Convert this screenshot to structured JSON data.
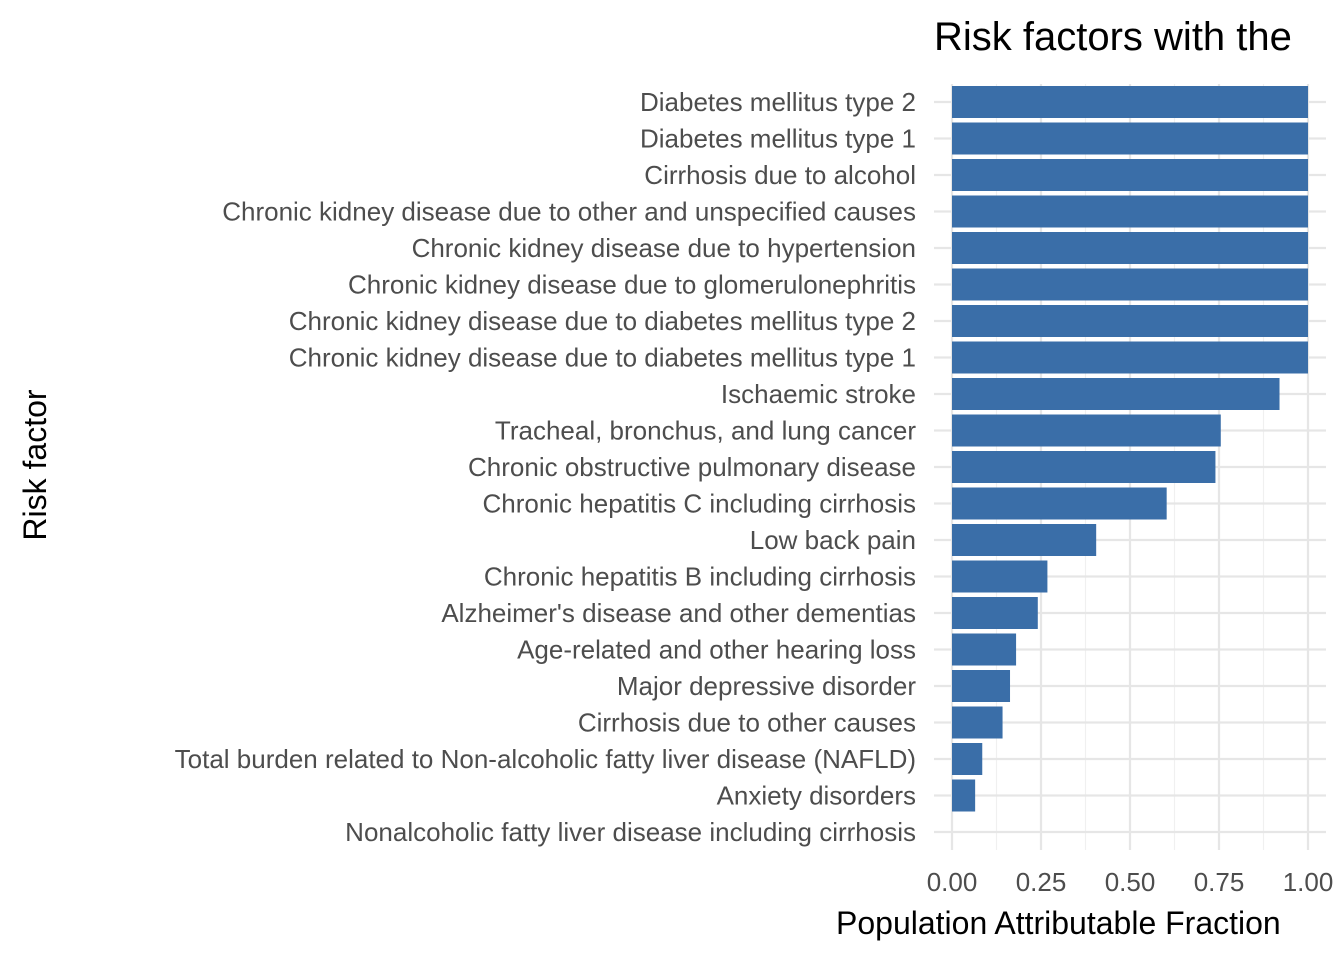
{
  "chart_data": {
    "type": "bar",
    "orientation": "horizontal",
    "title": "Risk factors with the",
    "xlabel": "Population Attributable Fraction",
    "ylabel": "Risk factor",
    "xlim": [
      0,
      1.0
    ],
    "x_ticks": [
      0.0,
      0.25,
      0.5,
      0.75,
      1.0
    ],
    "x_tick_labels": [
      "0.00",
      "0.25",
      "0.50",
      "0.75",
      "1.00"
    ],
    "grid": true,
    "bar_color": "#3a6ea8",
    "categories": [
      "Diabetes mellitus type 2",
      "Diabetes mellitus type 1",
      "Cirrhosis due to alcohol",
      "Chronic kidney disease due to other and unspecified causes",
      "Chronic kidney disease due to hypertension",
      "Chronic kidney disease due to glomerulonephritis",
      "Chronic kidney disease due to diabetes mellitus type 2",
      "Chronic kidney disease due to diabetes mellitus type 1",
      "Ischaemic stroke",
      "Tracheal, bronchus, and lung cancer",
      "Chronic obstructive pulmonary disease",
      "Chronic hepatitis C including cirrhosis",
      "Low back pain",
      "Chronic hepatitis B including cirrhosis",
      "Alzheimer's disease and other dementias",
      "Age-related and other hearing loss",
      "Major depressive disorder",
      "Cirrhosis due to other causes",
      "Total burden related to Non-alcoholic fatty liver disease (NAFLD)",
      "Anxiety disorders",
      "Nonalcoholic fatty liver disease including cirrhosis"
    ],
    "values": [
      1.0,
      1.0,
      1.0,
      1.0,
      1.0,
      1.0,
      1.0,
      1.0,
      0.92,
      0.755,
      0.74,
      0.603,
      0.405,
      0.268,
      0.241,
      0.18,
      0.163,
      0.142,
      0.085,
      0.065,
      0.0
    ]
  }
}
